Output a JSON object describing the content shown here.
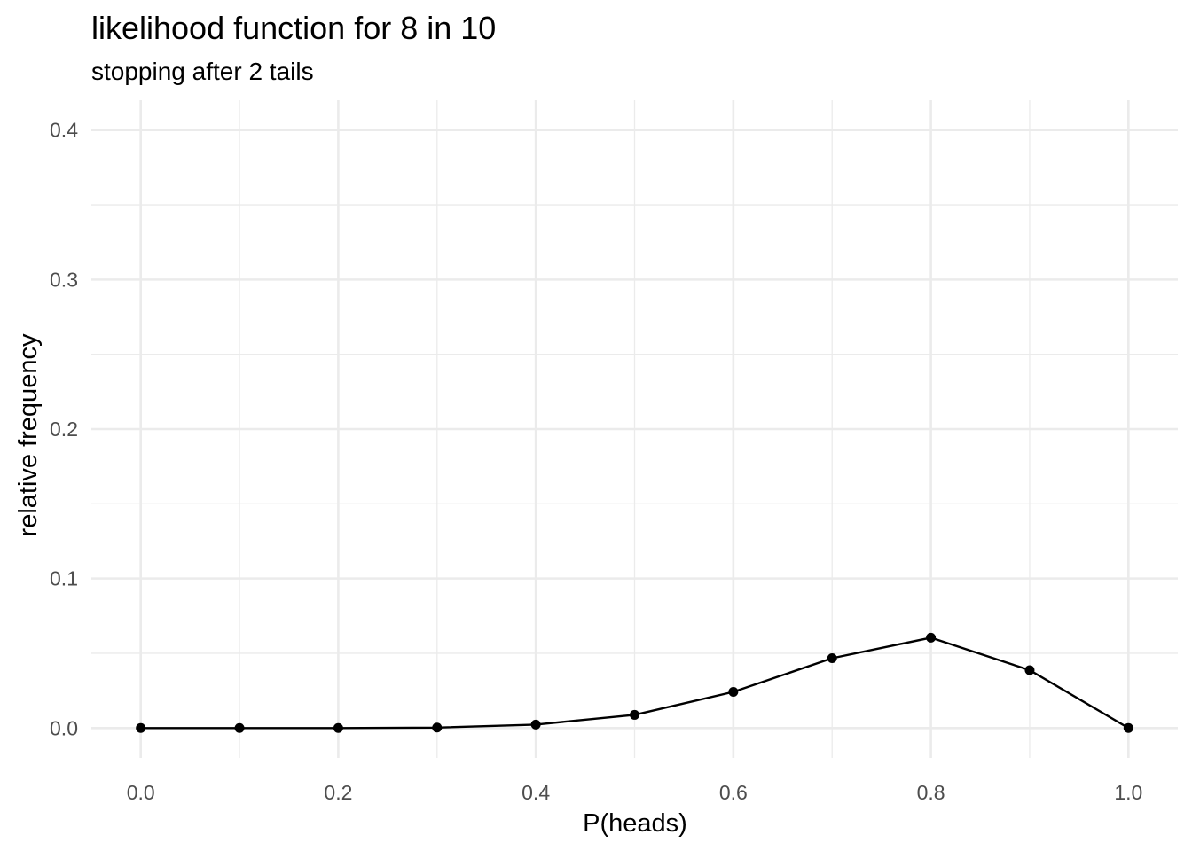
{
  "chart_data": {
    "type": "line",
    "title": "likelihood function for 8 in 10",
    "subtitle": "stopping after 2 tails",
    "xlabel": "P(heads)",
    "ylabel": "relative frequency",
    "xlim": [
      -0.05,
      1.05
    ],
    "ylim": [
      -0.02,
      0.42
    ],
    "x_ticks": [
      "0.0",
      "0.2",
      "0.4",
      "0.6",
      "0.8",
      "1.0"
    ],
    "x_tick_values": [
      0.0,
      0.2,
      0.4,
      0.6,
      0.8,
      1.0
    ],
    "y_ticks": [
      "0.0",
      "0.1",
      "0.2",
      "0.3",
      "0.4"
    ],
    "y_tick_values": [
      0.0,
      0.1,
      0.2,
      0.3,
      0.4
    ],
    "grid": true,
    "series": [
      {
        "x": [
          0.0,
          0.1,
          0.2,
          0.3,
          0.4,
          0.5,
          0.6,
          0.7,
          0.8,
          0.9,
          1.0
        ],
        "y": [
          0.0,
          0.0,
          0.0,
          0.0003,
          0.0023,
          0.0088,
          0.0242,
          0.0467,
          0.0604,
          0.0387,
          0.0
        ],
        "color": "#000000"
      }
    ]
  }
}
